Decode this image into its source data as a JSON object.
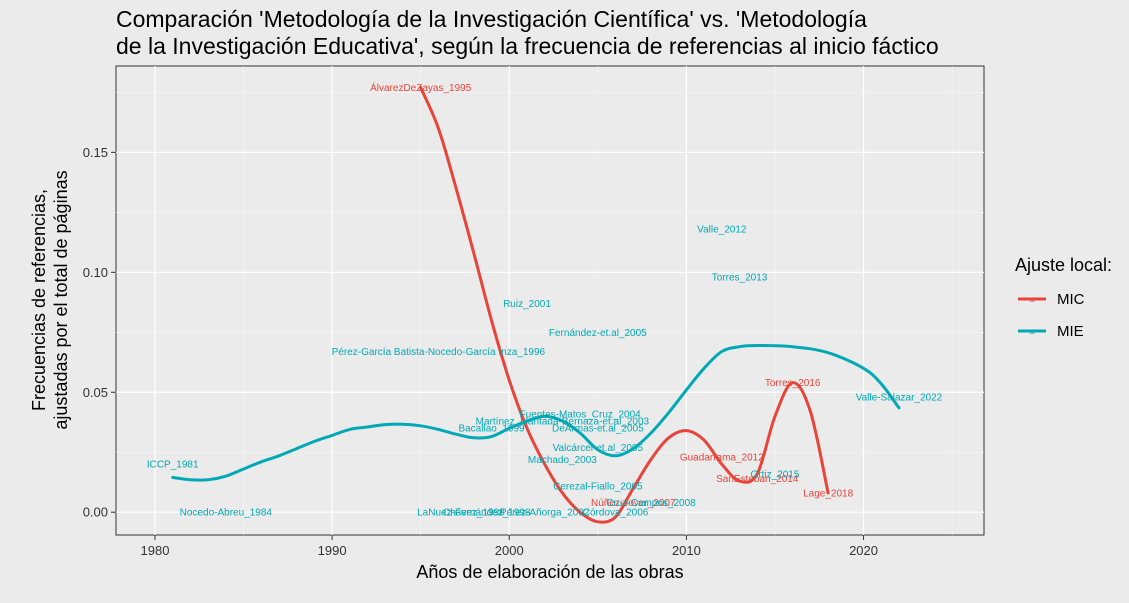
{
  "chart_data": {
    "type": "line",
    "title": [
      "Comparación 'Metodología de la Investigación Científica' vs. 'Metodología",
      "de la Investigación Educativa', según la frecuencia de referencias al inicio fáctico"
    ],
    "xlabel": "Años de elaboración de las obras",
    "ylabel": [
      "Frecuencias de referencias,",
      "ajustadas por el total de páginas"
    ],
    "xlim": [
      1977.8,
      2026.8
    ],
    "ylim": [
      -0.0095,
      0.186
    ],
    "x_ticks": [
      1980,
      1990,
      2000,
      2010,
      2020
    ],
    "y_ticks": [
      0.0,
      0.05,
      0.1,
      0.15
    ],
    "y_tick_labels": [
      "0.00",
      "0.05",
      "0.10",
      "0.15"
    ],
    "legend": {
      "title": "Ajuste local:",
      "position": "right",
      "entries": [
        {
          "name": "MIC",
          "color": "#e8443a"
        },
        {
          "name": "MIE",
          "color": "#00a9b5"
        }
      ]
    },
    "series": [
      {
        "name": "MIC",
        "color": "#e8443a",
        "curve": [
          [
            1995,
            0.177
          ],
          [
            1996,
            0.16
          ],
          [
            1997,
            0.135
          ],
          [
            1998,
            0.108
          ],
          [
            1999,
            0.08
          ],
          [
            2000,
            0.055
          ],
          [
            2001,
            0.035
          ],
          [
            2002,
            0.02
          ],
          [
            2003,
            0.008
          ],
          [
            2004,
            0.0
          ],
          [
            2005,
            -0.004
          ],
          [
            2006,
            -0.002
          ],
          [
            2007,
            0.01
          ],
          [
            2008,
            0.022
          ],
          [
            2009,
            0.031
          ],
          [
            2010,
            0.034
          ],
          [
            2011,
            0.03
          ],
          [
            2012,
            0.02
          ],
          [
            2013,
            0.013
          ],
          [
            2014,
            0.016
          ],
          [
            2015,
            0.04
          ],
          [
            2016,
            0.054
          ],
          [
            2017,
            0.042
          ],
          [
            2018,
            0.008
          ]
        ],
        "labels": [
          {
            "text": "ÁlvarezDeZayas_1995",
            "x": 1995,
            "y": 0.177
          },
          {
            "text": "Torres_2016",
            "x": 2016,
            "y": 0.054
          },
          {
            "text": "Guadarrama_2012",
            "x": 2012,
            "y": 0.023
          },
          {
            "text": "SanEsteban_2014",
            "x": 2014,
            "y": 0.014
          },
          {
            "text": "Lage_2018",
            "x": 2018,
            "y": 0.008
          },
          {
            "text": "Núñez-Jover_2007",
            "x": 2007,
            "y": 0.004
          }
        ]
      },
      {
        "name": "MIE",
        "color": "#00a9b5",
        "curve": [
          [
            1981,
            0.0145
          ],
          [
            1982,
            0.0135
          ],
          [
            1983,
            0.0135
          ],
          [
            1984,
            0.015
          ],
          [
            1985,
            0.018
          ],
          [
            1986,
            0.021
          ],
          [
            1987,
            0.0235
          ],
          [
            1988,
            0.0265
          ],
          [
            1989,
            0.0295
          ],
          [
            1990,
            0.032
          ],
          [
            1991,
            0.0345
          ],
          [
            1992,
            0.0355
          ],
          [
            1993,
            0.0365
          ],
          [
            1994,
            0.0367
          ],
          [
            1995,
            0.036
          ],
          [
            1996,
            0.0345
          ],
          [
            1997,
            0.0325
          ],
          [
            1998,
            0.031
          ],
          [
            1999,
            0.0315
          ],
          [
            2000,
            0.035
          ],
          [
            2001,
            0.038
          ],
          [
            2002,
            0.04
          ],
          [
            2003,
            0.038
          ],
          [
            2004,
            0.033
          ],
          [
            2005,
            0.026
          ],
          [
            2006,
            0.0235
          ],
          [
            2007,
            0.0265
          ],
          [
            2008,
            0.033
          ],
          [
            2009,
            0.0415
          ],
          [
            2010,
            0.051
          ],
          [
            2011,
            0.06
          ],
          [
            2012,
            0.067
          ],
          [
            2013,
            0.069
          ],
          [
            2014,
            0.0695
          ],
          [
            2016,
            0.069
          ],
          [
            2018,
            0.0665
          ],
          [
            2020,
            0.06
          ],
          [
            2021,
            0.0535
          ],
          [
            2022,
            0.0435
          ]
        ],
        "labels": [
          {
            "text": "Valle_2012",
            "x": 2012,
            "y": 0.118
          },
          {
            "text": "Torres_2013",
            "x": 2013,
            "y": 0.098
          },
          {
            "text": "Ruiz_2001",
            "x": 2001,
            "y": 0.087
          },
          {
            "text": "Fernández-et.al_2005",
            "x": 2005,
            "y": 0.075
          },
          {
            "text": "Pérez-García Batista-Nocedo-García Inza_1996",
            "x": 1996,
            "y": 0.067
          },
          {
            "text": "Valle-Salazar_2022",
            "x": 2022,
            "y": 0.048
          },
          {
            "text": "Fuentes-Matos_Cruz_2004",
            "x": 2004,
            "y": 0.041
          },
          {
            "text": "Martínez_Llantada-Bernaza-et.al_2003",
            "x": 2003,
            "y": 0.038
          },
          {
            "text": "Bacallao_1999",
            "x": 1999,
            "y": 0.035
          },
          {
            "text": "DeArmas-et.al_2005",
            "x": 2005,
            "y": 0.035
          },
          {
            "text": "Valcárcel-et.al_2005",
            "x": 2005,
            "y": 0.027
          },
          {
            "text": "Machado_2003",
            "x": 2003,
            "y": 0.022
          },
          {
            "text": "ICCP_1981",
            "x": 1981,
            "y": 0.02
          },
          {
            "text": "Ortiz_2015",
            "x": 2015,
            "y": 0.016
          },
          {
            "text": "Cerezal-Fiallo_2005",
            "x": 2005,
            "y": 0.011
          },
          {
            "text": "Cruz-Campos_2008",
            "x": 2008,
            "y": 0.004
          },
          {
            "text": "Nocedo-Abreu_1984",
            "x": 1984,
            "y": 0.0
          },
          {
            "text": "LaNuez-Fernández_1998",
            "x": 1998,
            "y": 0.0
          },
          {
            "text": "Chávez_1998",
            "x": 1998,
            "y": 0.0
          },
          {
            "text": "Pérez-Añorga_2002",
            "x": 2002,
            "y": 0.0
          },
          {
            "text": "Córdova_2006",
            "x": 2006,
            "y": 0.0
          }
        ]
      }
    ]
  }
}
